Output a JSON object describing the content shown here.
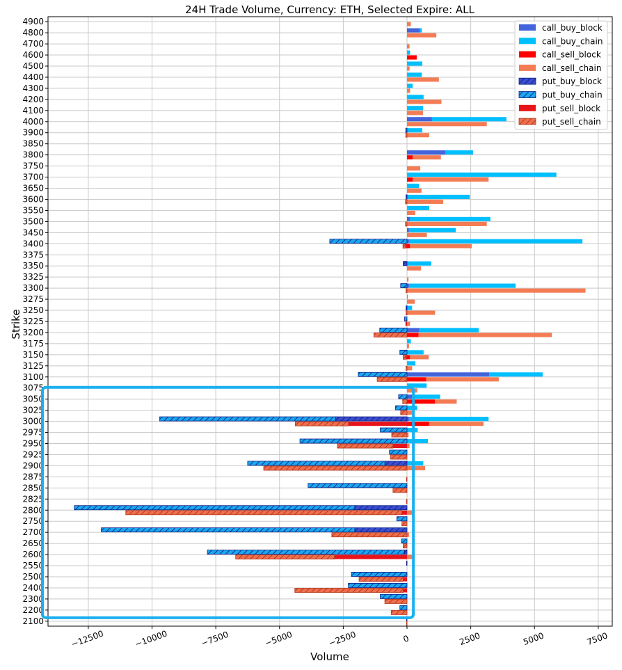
{
  "chart_data": {
    "type": "bar",
    "orientation": "horizontal",
    "stacked": true,
    "title": "24H Trade Volume, Currency: ETH, Selected Expire: ALL",
    "xlabel": "Volume",
    "ylabel": "Strike",
    "xlim": [
      -14080,
      8050
    ],
    "xticks": [
      -12500,
      -10000,
      -7500,
      -5000,
      -2500,
      0,
      2500,
      5000,
      7500
    ],
    "xtick_labels": [
      "−12500",
      "−10000",
      "−7500",
      "−5000",
      "−2500",
      "0",
      "2500",
      "5000",
      "7500"
    ],
    "grid": true,
    "legend_position": "top-right",
    "categories": [
      "4900",
      "4800",
      "4700",
      "4600",
      "4500",
      "4400",
      "4300",
      "4200",
      "4100",
      "4000",
      "3900",
      "3850",
      "3800",
      "3750",
      "3700",
      "3650",
      "3600",
      "3550",
      "3500",
      "3450",
      "3400",
      "3375",
      "3350",
      "3325",
      "3300",
      "3275",
      "3250",
      "3225",
      "3200",
      "3175",
      "3150",
      "3125",
      "3100",
      "3075",
      "3050",
      "3025",
      "3000",
      "2975",
      "2950",
      "2925",
      "2900",
      "2875",
      "2850",
      "2825",
      "2800",
      "2750",
      "2700",
      "2650",
      "2600",
      "2550",
      "2500",
      "2400",
      "2300",
      "2200",
      "2100"
    ],
    "series": [
      {
        "name": "call_buy_block",
        "group": "buy",
        "color": "#4464dc",
        "hatch": false,
        "values": [
          0,
          500,
          0,
          0,
          0,
          0,
          0,
          0,
          0,
          980,
          0,
          0,
          1500,
          0,
          0,
          0,
          0,
          0,
          120,
          80,
          80,
          0,
          0,
          0,
          80,
          0,
          0,
          0,
          480,
          0,
          0,
          0,
          3220,
          0,
          200,
          0,
          80,
          0,
          0,
          0,
          0,
          0,
          0,
          0,
          0,
          0,
          0,
          0,
          0,
          0,
          0,
          0,
          0,
          0,
          0
        ]
      },
      {
        "name": "call_buy_chain",
        "group": "buy",
        "color": "#00bfff",
        "hatch": false,
        "values": [
          0,
          80,
          0,
          120,
          600,
          580,
          220,
          650,
          630,
          2920,
          600,
          0,
          1090,
          0,
          5860,
          470,
          2460,
          870,
          3150,
          1830,
          6800,
          0,
          950,
          0,
          4180,
          30,
          200,
          0,
          2330,
          150,
          650,
          330,
          2100,
          770,
          1100,
          400,
          3120,
          420,
          820,
          0,
          640,
          0,
          0,
          0,
          0,
          0,
          0,
          0,
          0,
          0,
          0,
          0,
          0,
          0,
          0
        ]
      },
      {
        "name": "call_sell_block",
        "group": "sell",
        "color": "#ff0000",
        "hatch": false,
        "values": [
          0,
          0,
          0,
          380,
          0,
          0,
          0,
          0,
          0,
          0,
          0,
          0,
          220,
          0,
          220,
          0,
          0,
          0,
          0,
          0,
          120,
          0,
          0,
          0,
          0,
          0,
          0,
          0,
          450,
          0,
          120,
          0,
          750,
          0,
          1100,
          0,
          870,
          0,
          0,
          0,
          0,
          0,
          0,
          0,
          0,
          0,
          0,
          0,
          0,
          0,
          0,
          0,
          0,
          0,
          0
        ]
      },
      {
        "name": "call_sell_chain",
        "group": "sell",
        "color": "#f47c54",
        "hatch": false,
        "values": [
          150,
          1150,
          100,
          0,
          100,
          1250,
          120,
          1350,
          630,
          3130,
          870,
          0,
          1110,
          520,
          2980,
          570,
          1420,
          320,
          3130,
          780,
          2420,
          0,
          550,
          60,
          7000,
          300,
          1100,
          120,
          5230,
          80,
          730,
          200,
          2850,
          400,
          850,
          200,
          2130,
          60,
          100,
          0,
          710,
          0,
          0,
          0,
          200,
          0,
          80,
          0,
          250,
          0,
          0,
          0,
          0,
          0,
          0
        ]
      },
      {
        "name": "put_buy_block",
        "group": "buy",
        "color": "#3a50d0",
        "hatch": true,
        "values": [
          0,
          0,
          0,
          0,
          0,
          0,
          0,
          0,
          0,
          0,
          0,
          0,
          0,
          0,
          0,
          0,
          -40,
          0,
          0,
          0,
          0,
          0,
          -150,
          0,
          0,
          0,
          -40,
          0,
          0,
          0,
          0,
          0,
          0,
          0,
          0,
          0,
          -2800,
          0,
          0,
          0,
          -870,
          0,
          0,
          0,
          -2050,
          0,
          -2050,
          0,
          -100,
          -20,
          0,
          0,
          0,
          0,
          -20
        ]
      },
      {
        "name": "put_buy_chain",
        "group": "buy",
        "color": "#1aa8f0",
        "hatch": true,
        "values": [
          0,
          0,
          0,
          0,
          0,
          0,
          0,
          0,
          0,
          0,
          -50,
          0,
          0,
          0,
          0,
          0,
          0,
          0,
          0,
          0,
          -3030,
          0,
          0,
          0,
          -250,
          0,
          0,
          -100,
          -1070,
          0,
          -280,
          0,
          -1910,
          0,
          -330,
          -450,
          -6900,
          -1050,
          -4200,
          -690,
          -5380,
          0,
          -3880,
          0,
          -11000,
          -400,
          -9940,
          -220,
          -7730,
          0,
          -2180,
          -2300,
          -1050,
          -280,
          0
        ]
      },
      {
        "name": "put_sell_block",
        "group": "sell",
        "color": "#e8141a",
        "hatch": false,
        "values": [
          0,
          0,
          0,
          0,
          0,
          0,
          0,
          0,
          0,
          0,
          0,
          0,
          0,
          0,
          0,
          0,
          0,
          0,
          0,
          0,
          -60,
          0,
          0,
          0,
          0,
          0,
          0,
          -60,
          0,
          0,
          -50,
          0,
          0,
          0,
          0,
          0,
          -2300,
          0,
          -550,
          0,
          0,
          0,
          0,
          0,
          -200,
          0,
          0,
          0,
          -2840,
          0,
          -150,
          -150,
          0,
          0,
          0
        ]
      },
      {
        "name": "put_sell_chain",
        "group": "sell",
        "color": "#f06e4c",
        "hatch": true,
        "values": [
          0,
          0,
          0,
          0,
          0,
          0,
          0,
          0,
          0,
          0,
          -50,
          0,
          0,
          0,
          0,
          0,
          -60,
          0,
          -60,
          0,
          -100,
          0,
          0,
          0,
          -40,
          0,
          -40,
          0,
          -1300,
          0,
          -100,
          -40,
          -1170,
          0,
          -170,
          -250,
          -2080,
          -600,
          -2180,
          -650,
          -5620,
          -20,
          -550,
          -20,
          -10830,
          -200,
          -2950,
          -150,
          -3880,
          0,
          -1730,
          -4250,
          -870,
          -620,
          -20
        ]
      }
    ],
    "highlight_box": {
      "color": "#1ab0f0",
      "strike_range": [
        "3075",
        "2100"
      ],
      "volume_range": [
        -14080,
        250
      ]
    }
  }
}
